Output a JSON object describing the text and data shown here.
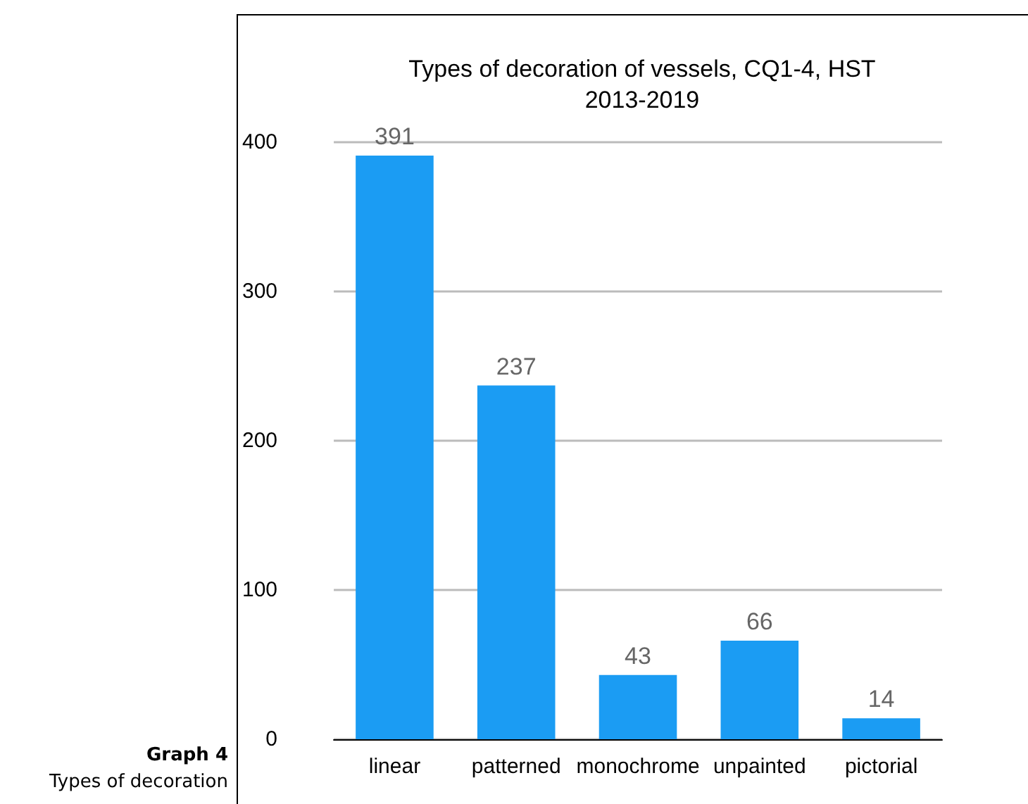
{
  "chart_data": {
    "type": "bar",
    "title": "Types of decoration of vessels, CQ1-4, HST\n2013-2019",
    "categories": [
      "linear",
      "patterned",
      "monochrome",
      "unpainted",
      "pictorial"
    ],
    "values": [
      391,
      237,
      43,
      66,
      14
    ],
    "color": "#1b9cf3",
    "ylim": [
      0,
      400
    ],
    "yticks": [
      0,
      100,
      200,
      300,
      400
    ],
    "grid": "y",
    "data_labels": true,
    "annotations": [
      "Graph 4",
      "Types of decoration"
    ]
  }
}
